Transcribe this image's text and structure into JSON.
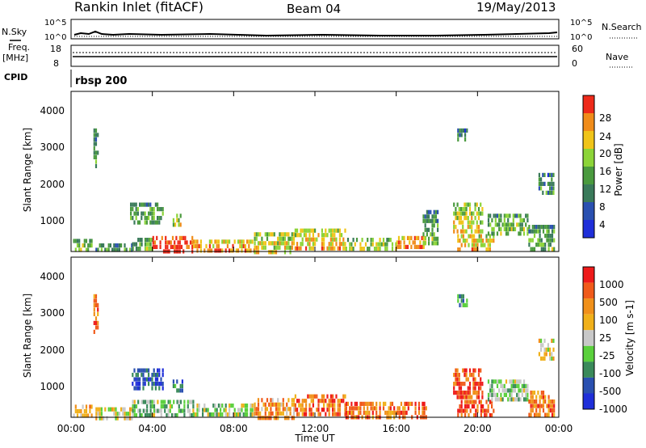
{
  "header": {
    "site": "Rankin Inlet (fitACF)",
    "beam": "Beam 04",
    "date": "19/May/2013"
  },
  "noise_panel": {
    "left_label": "N.Sky",
    "right_label": "N.Search",
    "top_tick": "10^5",
    "bottom_tick": "10^0"
  },
  "freq_panel": {
    "left_label": "Freq.",
    "left_unit": "[MHz]",
    "left_ticks": [
      "18",
      "8"
    ],
    "right_label": "Nave",
    "right_ticks": [
      "60",
      "0"
    ]
  },
  "cpid": {
    "label": "CPID",
    "program": "rbsp 200"
  },
  "x_axis": {
    "label": "Time UT",
    "ticks": [
      "00:00",
      "04:00",
      "08:00",
      "12:00",
      "16:00",
      "20:00",
      "00:00"
    ]
  },
  "colors": {
    "power": [
      "#1f2fd9",
      "#2a50b0",
      "#3a7a5a",
      "#4a9a3e",
      "#8cd438",
      "#f0c419",
      "#f08c1a",
      "#ee2a1a"
    ],
    "velocity": [
      "#ee1a1a",
      "#f05a1a",
      "#f0901a",
      "#f0b01a",
      "#c8c8c8",
      "#5ad03c",
      "#3a8a5a",
      "#2a50b0",
      "#1f2fd9"
    ]
  },
  "chart_data": [
    {
      "type": "heatmap",
      "title": "Power",
      "xlabel": "Time UT",
      "ylabel": "Slant Range [km]",
      "xlim": [
        0,
        24
      ],
      "ylim": [
        180,
        4500
      ],
      "y_ticks": [
        "1000",
        "2000",
        "3000",
        "4000"
      ],
      "colorbar": {
        "label": "Power [dB]",
        "range": [
          0,
          32
        ],
        "ticks": [
          "4",
          "8",
          "12",
          "16",
          "20",
          "24",
          "28"
        ]
      },
      "regions": [
        {
          "time": [
            0.1,
            1.0
          ],
          "range": [
            200,
            520
          ],
          "level": 0.45
        },
        {
          "time": [
            1.2,
            3.0
          ],
          "range": [
            200,
            400
          ],
          "level": 0.3
        },
        {
          "time": [
            3.0,
            4.0
          ],
          "range": [
            200,
            550
          ],
          "level": 0.4
        },
        {
          "time": [
            2.9,
            4.5
          ],
          "range": [
            900,
            1500
          ],
          "level": 0.35
        },
        {
          "time": [
            4.0,
            6.0
          ],
          "range": [
            200,
            600
          ],
          "level": 0.9
        },
        {
          "time": [
            5.0,
            5.5
          ],
          "range": [
            900,
            1200
          ],
          "level": 0.5
        },
        {
          "time": [
            6.0,
            9.0
          ],
          "range": [
            200,
            500
          ],
          "level": 0.7
        },
        {
          "time": [
            9.0,
            11.0
          ],
          "range": [
            200,
            700
          ],
          "level": 0.55
        },
        {
          "time": [
            11.0,
            13.5
          ],
          "range": [
            300,
            800
          ],
          "level": 0.6
        },
        {
          "time": [
            13.5,
            16.0
          ],
          "range": [
            200,
            550
          ],
          "level": 0.5
        },
        {
          "time": [
            16.0,
            17.5
          ],
          "range": [
            250,
            600
          ],
          "level": 0.75
        },
        {
          "time": [
            17.3,
            18.0
          ],
          "range": [
            400,
            1300
          ],
          "level": 0.35
        },
        {
          "time": [
            18.8,
            20.2
          ],
          "range": [
            700,
            1500
          ],
          "level": 0.55
        },
        {
          "time": [
            19.0,
            20.8
          ],
          "range": [
            200,
            650
          ],
          "level": 0.65
        },
        {
          "time": [
            20.5,
            22.5
          ],
          "range": [
            600,
            1200
          ],
          "level": 0.4
        },
        {
          "time": [
            22.5,
            23.8
          ],
          "range": [
            250,
            900
          ],
          "level": 0.35
        },
        {
          "time": [
            1.1,
            1.3
          ],
          "range": [
            2500,
            3500
          ],
          "level": 0.3
        },
        {
          "time": [
            19.0,
            19.5
          ],
          "range": [
            3200,
            3500
          ],
          "level": 0.25
        },
        {
          "time": [
            23.0,
            23.7
          ],
          "range": [
            1800,
            2300
          ],
          "level": 0.25
        }
      ]
    },
    {
      "type": "heatmap",
      "title": "Velocity",
      "xlabel": "Time UT",
      "ylabel": "Slant Range [km]",
      "xlim": [
        0,
        24
      ],
      "ylim": [
        180,
        4500
      ],
      "y_ticks": [
        "1000",
        "2000",
        "3000",
        "4000"
      ],
      "colorbar": {
        "label": "Velocity [m s-1]",
        "ticks": [
          "1000",
          "500",
          "100",
          "25",
          "-25",
          "-100",
          "-500",
          "-1000"
        ]
      },
      "regions": [
        {
          "time": [
            0.1,
            1.0
          ],
          "range": [
            200,
            520
          ],
          "level": 0.35
        },
        {
          "time": [
            1.2,
            3.0
          ],
          "range": [
            200,
            450
          ],
          "level": 0.45
        },
        {
          "time": [
            2.9,
            4.5
          ],
          "range": [
            900,
            1500
          ],
          "level": 0.85
        },
        {
          "time": [
            3.0,
            6.0
          ],
          "range": [
            200,
            650
          ],
          "level": 0.6
        },
        {
          "time": [
            5.0,
            5.5
          ],
          "range": [
            900,
            1200
          ],
          "level": 0.8
        },
        {
          "time": [
            6.0,
            9.0
          ],
          "range": [
            200,
            550
          ],
          "level": 0.55
        },
        {
          "time": [
            9.0,
            11.0
          ],
          "range": [
            200,
            700
          ],
          "level": 0.3
        },
        {
          "time": [
            11.0,
            13.5
          ],
          "range": [
            250,
            800
          ],
          "level": 0.2
        },
        {
          "time": [
            13.5,
            17.5
          ],
          "range": [
            200,
            600
          ],
          "level": 0.22
        },
        {
          "time": [
            18.8,
            20.2
          ],
          "range": [
            700,
            1500
          ],
          "level": 0.12
        },
        {
          "time": [
            19.0,
            20.8
          ],
          "range": [
            200,
            650
          ],
          "level": 0.15
        },
        {
          "time": [
            20.5,
            22.5
          ],
          "range": [
            600,
            1200
          ],
          "level": 0.6
        },
        {
          "time": [
            22.5,
            23.8
          ],
          "range": [
            250,
            900
          ],
          "level": 0.25
        },
        {
          "time": [
            1.1,
            1.3
          ],
          "range": [
            2500,
            3500
          ],
          "level": 0.2
        },
        {
          "time": [
            19.0,
            19.5
          ],
          "range": [
            3200,
            3500
          ],
          "level": 0.7
        },
        {
          "time": [
            23.0,
            23.7
          ],
          "range": [
            1800,
            2300
          ],
          "level": 0.45
        }
      ]
    }
  ]
}
